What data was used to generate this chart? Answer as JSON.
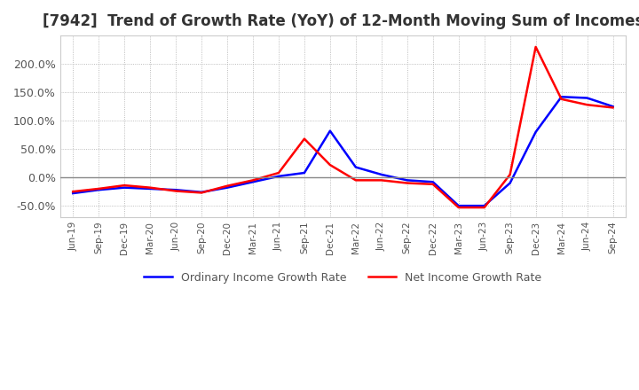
{
  "title": "[7942]  Trend of Growth Rate (YoY) of 12-Month Moving Sum of Incomes",
  "title_fontsize": 12,
  "legend_labels": [
    "Ordinary Income Growth Rate",
    "Net Income Growth Rate"
  ],
  "legend_colors": [
    "#0000FF",
    "#FF0000"
  ],
  "x_labels": [
    "Jun-19",
    "Sep-19",
    "Dec-19",
    "Mar-20",
    "Jun-20",
    "Sep-20",
    "Dec-20",
    "Mar-21",
    "Jun-21",
    "Sep-21",
    "Dec-21",
    "Mar-22",
    "Jun-22",
    "Sep-22",
    "Dec-22",
    "Mar-23",
    "Jun-23",
    "Sep-23",
    "Dec-23",
    "Mar-24",
    "Jun-24",
    "Sep-24"
  ],
  "ordinary_income_growth": [
    -28,
    -22,
    -18,
    -20,
    -22,
    -26,
    -18,
    -8,
    2,
    8,
    82,
    18,
    5,
    -5,
    -8,
    -50,
    -50,
    -10,
    80,
    142,
    140,
    125
  ],
  "net_income_growth": [
    -25,
    -20,
    -14,
    -18,
    -24,
    -27,
    -15,
    -5,
    8,
    68,
    22,
    -5,
    -5,
    -10,
    -12,
    -53,
    -53,
    5,
    230,
    138,
    128,
    123
  ],
  "ylim": [
    -70,
    250
  ],
  "yticks": [
    -50,
    0,
    50,
    100,
    150,
    200
  ],
  "background_color": "#ffffff",
  "grid_color": "#aaaaaa",
  "plot_area_color": "#ffffff"
}
